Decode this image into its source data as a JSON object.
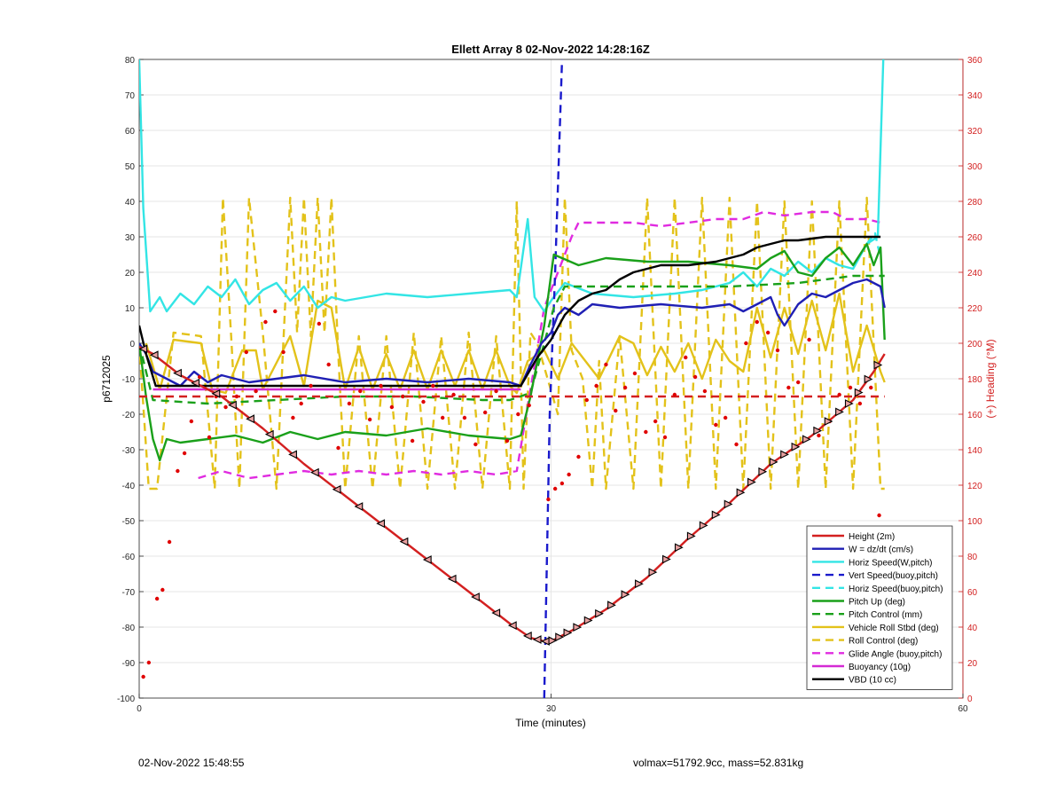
{
  "colors": {
    "height": "#d32020",
    "w": "#1f1fb4",
    "horiz_speed": "#33e5e5",
    "vert_speed": "#1a1acc",
    "pitch": "#1aa01a",
    "roll": "#e3c21a",
    "glide": "#e02be0",
    "buoyancy": "#d42ad4",
    "vbd": "#000000",
    "dots": "#e00000",
    "right_axis": "#d32020",
    "grid": "#e6e6e6"
  },
  "footer": {
    "timestamp": "02-Nov-2022 15:48:55",
    "info": "volmax=51792.9cc, mass=52.831kg"
  },
  "chart_data": {
    "type": "line",
    "title": "Ellett Array 8 02-Nov-2022 14:28:16Z",
    "xlabel": "Time (minutes)",
    "ylabel": "p6712025",
    "y2label": "(+) Heading (°M)",
    "xlim": [
      0,
      60
    ],
    "ylim": [
      -100,
      80
    ],
    "y2lim": [
      0,
      360
    ],
    "xticks": [
      0,
      30,
      60
    ],
    "yticks": [
      80,
      70,
      60,
      50,
      40,
      30,
      20,
      10,
      0,
      -10,
      -20,
      -30,
      -40,
      -50,
      -60,
      -70,
      -80,
      -90,
      -100
    ],
    "y2ticks": [
      360,
      340,
      320,
      300,
      280,
      260,
      240,
      220,
      200,
      180,
      160,
      140,
      120,
      100,
      80,
      60,
      40,
      20,
      0
    ],
    "grid": true,
    "legend_position": "bottom-right",
    "legend": [
      "Height (2m)",
      "W = dz/dt (cm/s)",
      "Horiz Speed(W,pitch)",
      "Vert Speed(buoy,pitch)",
      "Horiz Speed(buoy,pitch)",
      "Pitch Up (deg)",
      "Pitch Control (mm)",
      "Vehicle Roll Stbd (deg)",
      "Roll Control (deg)",
      "Glide Angle (buoy,pitch)",
      "Buoyancy (10g)",
      "VBD (10 cc)"
    ],
    "series": [
      {
        "name": "Height (2m)",
        "style": "solid",
        "color_key": "height",
        "x": [
          0,
          1,
          3,
          6,
          9,
          12,
          15,
          18,
          21,
          24,
          27,
          28.5,
          29.5,
          30,
          31.5,
          34,
          37,
          40,
          43,
          46,
          49,
          52,
          53.5,
          54.3
        ],
        "y": [
          -1,
          -3,
          -9,
          -15,
          -24,
          -34,
          -43,
          -52,
          -61,
          -70,
          -79,
          -83,
          -84,
          -84,
          -81,
          -75,
          -66,
          -55,
          -45,
          -34,
          -26,
          -16,
          -8,
          -3
        ]
      },
      {
        "name": "W = dz/dt (cm/s)",
        "style": "solid",
        "color_key": "w",
        "x": [
          0,
          0.5,
          1,
          2,
          3,
          4,
          5,
          6,
          8,
          10,
          12,
          15,
          18,
          21,
          24,
          27,
          27.8,
          28.5,
          29.3,
          30,
          30.5,
          31,
          32,
          33,
          35,
          38,
          41,
          43,
          44,
          45,
          46,
          46.5,
          47,
          48,
          49,
          50,
          51,
          52,
          53,
          54,
          54.3
        ],
        "y": [
          0,
          -3,
          -8,
          -10,
          -12,
          -8,
          -11,
          -9,
          -11,
          -10,
          -9,
          -11,
          -10,
          -11,
          -10,
          -11,
          -12,
          -6,
          0,
          3,
          8,
          10,
          8,
          11,
          10,
          11,
          10,
          11,
          9,
          11,
          13,
          8,
          5,
          11,
          14,
          13,
          15,
          17,
          18,
          16,
          10
        ]
      },
      {
        "name": "Horiz Speed(W,pitch)",
        "style": "solid",
        "color_key": "horiz_speed",
        "x": [
          0,
          0.3,
          0.8,
          1.5,
          2,
          3,
          4,
          5,
          6,
          7,
          8,
          9,
          10,
          11,
          12,
          13,
          14,
          15,
          18,
          21,
          24,
          27,
          27.5,
          28.3,
          28.8,
          29.5,
          30,
          31,
          33,
          36,
          39,
          41,
          43,
          44,
          45,
          46,
          47,
          48,
          49,
          50,
          51,
          52,
          53,
          53.8,
          54.2
        ],
        "y": [
          80,
          38,
          9,
          13,
          9,
          14,
          11,
          16,
          13,
          18,
          11,
          15,
          17,
          12,
          16,
          10,
          13,
          12,
          14,
          13,
          14,
          15,
          13,
          35,
          13,
          9,
          12,
          17,
          14,
          13,
          14,
          15,
          17,
          20,
          16,
          21,
          19,
          23,
          20,
          24,
          22,
          21,
          28,
          30,
          80
        ]
      },
      {
        "name": "Vert Speed(buoy,pitch)",
        "style": "dashed",
        "color_key": "vert_speed",
        "x": [
          29.5,
          29.9,
          30.3,
          30.8
        ],
        "y": [
          -100,
          -20,
          20,
          80
        ]
      },
      {
        "name": "Horiz Speed(buoy,pitch)",
        "style": "dashed",
        "color_key": "horiz_speed",
        "x": [
          53.0,
          53.6,
          54.0
        ],
        "y": [
          28,
          31,
          24
        ]
      },
      {
        "name": "Pitch Up (deg)",
        "style": "solid",
        "color_key": "pitch",
        "x": [
          0,
          0.5,
          1,
          1.5,
          2,
          3,
          5,
          7,
          9,
          11,
          13,
          15,
          18,
          21,
          24,
          27,
          27.8,
          28.5,
          29.5,
          30.2,
          30.8,
          32,
          34,
          37,
          40,
          43,
          45,
          46,
          47,
          48,
          49,
          50,
          51,
          52,
          53,
          53.5,
          54,
          54.3
        ],
        "y": [
          0,
          -15,
          -27,
          -33,
          -27,
          -28,
          -27,
          -26,
          -28,
          -25,
          -27,
          -25,
          -26,
          -24,
          -26,
          -27,
          -26,
          -15,
          5,
          25,
          24,
          22,
          24,
          23,
          23,
          22,
          21,
          24,
          26,
          20,
          19,
          24,
          27,
          22,
          28,
          22,
          27,
          1
        ]
      },
      {
        "name": "Pitch Control (mm)",
        "style": "dashed",
        "color_key": "pitch",
        "x": [
          0,
          1,
          5,
          10,
          15,
          20,
          25,
          27,
          28.5,
          29.5,
          30.2,
          31,
          33,
          38,
          43,
          48,
          52,
          54.3
        ],
        "y": [
          0,
          -16,
          -17,
          -16,
          -15,
          -15,
          -16,
          -16,
          -14,
          0,
          10,
          16,
          16,
          16,
          16,
          17,
          19,
          19
        ]
      },
      {
        "name": "Vehicle Roll Stbd (deg)",
        "style": "solid",
        "color_key": "roll",
        "x": [
          0.5,
          1.5,
          2.5,
          4.5,
          5.3,
          6.3,
          7.5,
          8.5,
          9,
          11,
          12,
          13,
          14,
          15,
          16,
          17,
          18,
          19,
          20,
          21,
          22,
          23,
          24,
          25,
          26,
          27,
          27.5,
          28.3,
          29.5,
          30.5,
          31.5,
          32.5,
          33.5,
          35,
          36,
          37,
          38,
          39,
          40,
          41,
          42,
          43,
          44,
          45,
          46,
          47,
          48,
          49,
          50,
          51,
          52,
          53,
          54,
          54.3
        ],
        "y": [
          0,
          -13,
          1,
          0,
          -13,
          -14,
          -2,
          -2,
          -13,
          2,
          -12,
          12,
          10,
          -13,
          -1,
          -13,
          -3,
          -13,
          -2,
          -13,
          -2,
          -12,
          -2,
          -13,
          -2,
          -12,
          -14,
          -5,
          -2,
          -10,
          0,
          -5,
          -10,
          2,
          0,
          -9,
          -1,
          -8,
          0,
          -10,
          1,
          -5,
          -8,
          10,
          -4,
          10,
          -3,
          12,
          -2,
          14,
          -8,
          5,
          -8,
          -11
        ]
      },
      {
        "name": "Roll Control (deg)",
        "style": "dashed",
        "color_key": "roll",
        "x": [
          0,
          0.7,
          1.3,
          2.5,
          4.5,
          5.5,
          6.1,
          6.7,
          7.3,
          8,
          9,
          10,
          11,
          11.5,
          12,
          12.5,
          13,
          13.5,
          14,
          14.5,
          15,
          16,
          17,
          18,
          19,
          20,
          21,
          22,
          23,
          24,
          25,
          26,
          27,
          27.5,
          28,
          28.5,
          29,
          30.5,
          31,
          31.5,
          32.3,
          33,
          33.5,
          34,
          35,
          36,
          37,
          38,
          39,
          40,
          41,
          42,
          43,
          44,
          45,
          46,
          47,
          48,
          49,
          50,
          51,
          52,
          53,
          54,
          54.3
        ],
        "y": [
          0,
          -41,
          -41,
          3,
          2,
          -41,
          41,
          2,
          -41,
          41,
          3,
          -41,
          41,
          3,
          41,
          2,
          41,
          3,
          41,
          -3,
          -41,
          2,
          -41,
          2,
          -41,
          3,
          -41,
          2,
          -41,
          3,
          -41,
          2,
          -41,
          40,
          -41,
          3,
          0,
          -20,
          41,
          -2,
          -10,
          -41,
          -5,
          -41,
          2,
          -41,
          41,
          -41,
          41,
          -41,
          41,
          -41,
          41,
          -41,
          40,
          -41,
          40,
          -41,
          40,
          -41,
          40,
          -41,
          41,
          -41,
          -41
        ]
      },
      {
        "name": "Glide Angle (buoy,pitch)",
        "style": "dashed",
        "color_key": "glide",
        "x": [
          4.3,
          6,
          8,
          10,
          12,
          14,
          16,
          18,
          20,
          22,
          24,
          26,
          27.5,
          29.5,
          30.5,
          31.5,
          32,
          34,
          36,
          38,
          40,
          42,
          44,
          45.5,
          47,
          49,
          50.5,
          51.5,
          53,
          54
        ],
        "y": [
          -38,
          -36,
          -38,
          -37,
          -36,
          -37,
          -36,
          -37,
          -36,
          -37,
          -36,
          -37,
          -36,
          10,
          20,
          30,
          34,
          34,
          34,
          33,
          34,
          35,
          35,
          37,
          36,
          37,
          37,
          35,
          35,
          34
        ]
      },
      {
        "name": "Buoyancy (10g)",
        "style": "solid",
        "color_key": "buoyancy",
        "x": [
          1,
          10,
          20,
          27.8
        ],
        "y": [
          -13,
          -13,
          -13,
          -13
        ]
      },
      {
        "name": "VBD (10 cc)",
        "style": "solid",
        "color_key": "vbd",
        "x": [
          0,
          0.5,
          1.2,
          10,
          20,
          27.8,
          29,
          30,
          31,
          32,
          33,
          34,
          35,
          36,
          37,
          38,
          40,
          42,
          44,
          45,
          46,
          47,
          48,
          50,
          52,
          54
        ],
        "y": [
          5,
          -3,
          -12,
          -12,
          -12,
          -12,
          -4,
          1,
          8,
          12,
          14,
          15,
          18,
          20,
          21,
          22,
          22,
          23,
          25,
          27,
          28,
          29,
          29,
          30,
          30,
          30
        ]
      },
      {
        "name": "Heading reference",
        "style": "dashed",
        "color_key": "height",
        "axis": "right",
        "x": [
          0,
          54.3
        ],
        "y": [
          170,
          170
        ]
      }
    ],
    "heading_points": {
      "x": [
        0.3,
        0.7,
        1.3,
        1.7,
        2.2,
        2.8,
        3.3,
        3.8,
        4.4,
        5.1,
        5.6,
        6.3,
        7.1,
        7.8,
        8.5,
        9.2,
        9.9,
        10.5,
        11.2,
        11.8,
        12.5,
        13.1,
        13.8,
        14.5,
        15.3,
        16.1,
        16.8,
        17.6,
        18.4,
        19.2,
        19.9,
        20.7,
        21.4,
        22.1,
        22.9,
        23.7,
        24.5,
        25.2,
        26.0,
        26.8,
        27.6,
        28.4,
        29.8,
        30.3,
        30.8,
        31.3,
        32.0,
        32.6,
        33.3,
        34.0,
        34.7,
        35.4,
        36.1,
        36.9,
        37.6,
        38.3,
        39.0,
        39.8,
        40.5,
        41.2,
        42.0,
        42.7,
        43.5,
        44.2,
        45.0,
        45.8,
        46.5,
        47.3,
        48.0,
        48.8,
        49.5,
        50.3,
        51.0,
        51.8,
        52.5,
        53.3,
        53.9
      ],
      "y": [
        12,
        20,
        56,
        61,
        88,
        128,
        138,
        156,
        181,
        147,
        170,
        164,
        170,
        195,
        173,
        212,
        218,
        195,
        158,
        166,
        176,
        211,
        188,
        141,
        166,
        173,
        157,
        176,
        164,
        170,
        145,
        167,
        176,
        158,
        171,
        158,
        143,
        161,
        173,
        145,
        160,
        165,
        112,
        118,
        121,
        126,
        136,
        168,
        176,
        188,
        162,
        175,
        183,
        150,
        156,
        147,
        171,
        192,
        181,
        173,
        154,
        158,
        143,
        200,
        212,
        206,
        196,
        175,
        178,
        202,
        148,
        156,
        171,
        175,
        166,
        175,
        103
      ]
    },
    "height_markers_x": [
      0.3,
      1.1,
      2.8,
      4.1,
      5.6,
      6.8,
      8.1,
      9.5,
      11.2,
      12.8,
      14.4,
      16.0,
      17.6,
      19.3,
      21.0,
      22.8,
      24.5,
      26.0,
      27.2,
      28.3,
      29.0,
      29.6,
      30.1,
      30.6,
      31.2,
      31.9,
      32.7,
      33.5,
      34.4,
      35.4,
      36.4,
      37.4,
      38.4,
      39.3,
      40.2,
      41.1,
      42.0,
      42.9,
      43.8,
      44.6,
      45.4,
      46.2,
      47.0,
      47.8,
      48.6,
      49.4,
      50.2,
      51.0,
      51.7,
      52.4,
      53.1,
      53.8
    ]
  }
}
